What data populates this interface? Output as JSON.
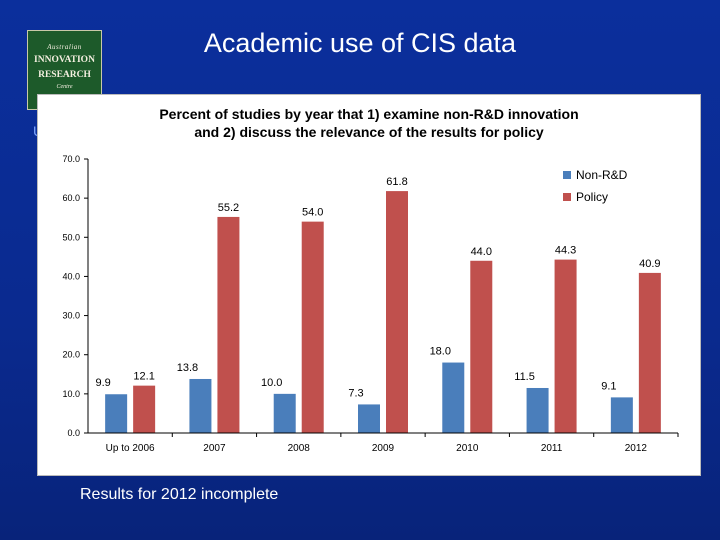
{
  "slide": {
    "title": "Academic use of CIS data",
    "left_fragment": "U",
    "footnote": "Results for 2012 incomplete"
  },
  "logo": {
    "line1": "Australian",
    "line2": "INNOVATION",
    "line3": "RESEARCH",
    "line4": "Centre"
  },
  "colors": {
    "non_rd": "#4a7ebb",
    "policy": "#c0504d",
    "background": "#0a2a8f"
  },
  "chart_data": {
    "type": "bar",
    "title_line1": "Percent of studies by year that 1) examine non-R&D innovation",
    "title_line2": "and 2) discuss the relevance of the results for policy",
    "categories": [
      "Up to 2006",
      "2007",
      "2008",
      "2009",
      "2010",
      "2011",
      "2012"
    ],
    "series": [
      {
        "name": "Non-R&D",
        "color": "#4a7ebb",
        "values": [
          9.9,
          13.8,
          10.0,
          7.3,
          18.0,
          11.5,
          9.1
        ],
        "labels": [
          "9.9",
          "13.8",
          "10.0",
          "7.3",
          "18.0",
          "11.5",
          "9.1"
        ]
      },
      {
        "name": "Policy",
        "color": "#c0504d",
        "values": [
          12.1,
          55.2,
          54.0,
          61.8,
          44.0,
          44.3,
          40.9
        ],
        "labels": [
          "12.1",
          "55.2",
          "54.0",
          "61.8",
          "44.0",
          "44.3",
          "40.9"
        ]
      }
    ],
    "yticks": [
      "0.0",
      "10.0",
      "20.0",
      "30.0",
      "40.0",
      "50.0",
      "60.0",
      "70.0"
    ],
    "ylim": [
      0,
      70
    ],
    "legend": "top-right",
    "grid": false
  }
}
